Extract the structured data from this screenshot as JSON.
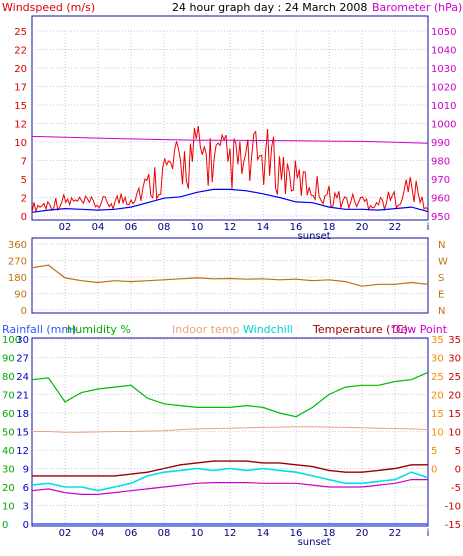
{
  "header": {
    "title": "24 hour graph day : 24 March 2008",
    "left_label": "Windspeed (m/s)",
    "right_label": "Barometer (hPa)"
  },
  "colors": {
    "frame": "#1010a0",
    "grid": "#9090c8",
    "wind_avg": "#0000ee",
    "gust": "#ee0000",
    "barometer": "#cc00cc",
    "direction": "#c07010",
    "rainfall": "#3355ff",
    "humidity": "#00bb00",
    "indoor_temp": "#f0a080",
    "windchill": "#00e0e0",
    "temperature": "#990000",
    "dew_point": "#cc00cc",
    "rain_axis": "#0000cc",
    "humidity_axis": "#00aa00",
    "temp_axis": "#cc0000",
    "indoor_axis": "#ff8800"
  },
  "x_axis": {
    "ticks": [
      "02",
      "04",
      "06",
      "08",
      "10",
      "12",
      "14",
      "16",
      "18",
      "20",
      "22",
      "i"
    ],
    "sunset_label": "sunset"
  },
  "chart_data": [
    {
      "type": "line",
      "name": "wind-barometer",
      "ylabel_left": "Windspeed (m/s)",
      "ylabel_right": "Barometer (hPa)",
      "ylim_left": [
        0,
        25
      ],
      "left_ticks": [
        "0",
        "2",
        "5",
        "7",
        "10",
        "12",
        "15",
        "17",
        "20",
        "22",
        "25"
      ],
      "ylim_right": [
        950,
        1050
      ],
      "right_ticks": [
        "950",
        "960",
        "970",
        "980",
        "990",
        "1000",
        "1010",
        "1020",
        "1030",
        "1040",
        "1050"
      ],
      "grid": true,
      "barometer_x_hours": [
        0,
        2,
        4,
        6,
        8,
        10,
        12,
        14,
        16,
        18,
        20,
        22,
        24
      ],
      "barometer_values": [
        993,
        992.6,
        992.1,
        991.7,
        991.3,
        991,
        990.9,
        990.8,
        990.7,
        990.5,
        990.3,
        989.9,
        989.3
      ],
      "wind_x_hours": [
        0,
        1,
        2,
        3,
        4,
        5,
        6,
        7,
        8,
        9,
        10,
        11,
        12,
        13,
        14,
        15,
        16,
        17,
        18,
        19,
        20,
        21,
        22,
        23,
        24
      ],
      "wind_avg_values": [
        0.5,
        0.8,
        1.0,
        0.9,
        0.8,
        0.9,
        1.2,
        1.8,
        2.4,
        2.6,
        3.2,
        3.6,
        3.6,
        3.4,
        3.0,
        2.5,
        1.9,
        1.8,
        1.2,
        0.9,
        0.9,
        0.8,
        1.0,
        1.2,
        0.6
      ],
      "gust_values": [
        1.5,
        2.0,
        2.5,
        2.2,
        2.0,
        2.4,
        3.5,
        5.0,
        7.5,
        8.5,
        10.5,
        9.5,
        9.0,
        8.5,
        10.0,
        8.0,
        6.0,
        5.0,
        3.5,
        2.5,
        2.5,
        2.2,
        3.0,
        5.0,
        1.0
      ]
    },
    {
      "type": "line",
      "name": "wind-direction",
      "ylim": [
        0,
        360
      ],
      "left_ticks": [
        "0",
        "90",
        "180",
        "270",
        "360"
      ],
      "right_ticks": [
        "N",
        "E",
        "S",
        "W",
        "N"
      ],
      "grid": true,
      "x_hours": [
        0,
        1,
        2,
        3,
        4,
        5,
        6,
        7,
        8,
        9,
        10,
        11,
        12,
        13,
        14,
        15,
        16,
        17,
        18,
        19,
        20,
        21,
        22,
        23,
        24
      ],
      "values": [
        230,
        245,
        175,
        160,
        150,
        160,
        155,
        160,
        165,
        170,
        175,
        170,
        172,
        168,
        170,
        165,
        168,
        160,
        165,
        155,
        130,
        140,
        140,
        150,
        140
      ]
    },
    {
      "type": "line",
      "name": "temperature-humidity-rain",
      "legend": [
        "Rainfall (mm)",
        "Humidity %",
        "Indoor temp",
        "Windchill",
        "Temperature (°C)",
        "Dew Point"
      ],
      "humidity_ticks": [
        "0",
        "10",
        "20",
        "30",
        "40",
        "50",
        "60",
        "70",
        "80",
        "90",
        "100"
      ],
      "rain_ticks": [
        "0",
        "3",
        "6",
        "9",
        "12",
        "15",
        "18",
        "21",
        "24",
        "27",
        "30"
      ],
      "temp_ticks": [
        "-15",
        "-10",
        "-5",
        "0",
        "5",
        "10",
        "15",
        "20",
        "25",
        "30",
        "35"
      ],
      "indoor_ticks": [
        "",
        "",
        "",
        "0",
        "5",
        "10",
        "15",
        "20",
        "25",
        "30",
        "35"
      ],
      "ylim_temp": [
        -15,
        35
      ],
      "grid": true,
      "x_hours": [
        0,
        1,
        2,
        3,
        4,
        5,
        6,
        7,
        8,
        9,
        10,
        11,
        12,
        13,
        14,
        15,
        16,
        17,
        18,
        19,
        20,
        21,
        22,
        23,
        24
      ],
      "humidity": [
        78,
        79,
        66,
        71,
        73,
        74,
        75,
        68,
        65,
        64,
        63,
        63,
        63,
        64,
        63,
        60,
        58,
        63,
        70,
        74,
        75,
        75,
        77,
        78,
        82
      ],
      "indoor_temp": [
        10,
        10,
        9.8,
        9.8,
        9.9,
        10,
        10,
        10.1,
        10.2,
        10.5,
        10.7,
        10.8,
        10.9,
        11,
        11.1,
        11.2,
        11.3,
        11.3,
        11.2,
        11.1,
        11,
        10.9,
        10.8,
        10.7,
        10.5
      ],
      "temperature": [
        -2,
        -2,
        -2,
        -2,
        -2,
        -2,
        -1.5,
        -1,
        0,
        1,
        1.5,
        2,
        2,
        2,
        1.5,
        1.5,
        1,
        0.5,
        -0.5,
        -1,
        -1,
        -0.5,
        0,
        1,
        1
      ],
      "windchill": [
        -4.5,
        -4,
        -5,
        -5,
        -6,
        -5,
        -4,
        -2,
        -1,
        -0.5,
        0,
        -0.5,
        0,
        -0.5,
        0,
        -0.5,
        -1,
        -2,
        -3,
        -4,
        -4,
        -3.5,
        -3,
        -1,
        -2.5
      ],
      "dew_point": [
        -6,
        -5.5,
        -6.5,
        -7,
        -7,
        -6.5,
        -6,
        -5.5,
        -5,
        -4.5,
        -4,
        -3.8,
        -3.8,
        -3.8,
        -4,
        -4,
        -4,
        -4.5,
        -5,
        -5,
        -5,
        -4.5,
        -4,
        -3,
        -3
      ],
      "rainfall": [
        0,
        0,
        0,
        0,
        0,
        0,
        0,
        0,
        0,
        0,
        0,
        0,
        0,
        0,
        0,
        0,
        0,
        0,
        0,
        0,
        0,
        0,
        0,
        0,
        0
      ]
    }
  ]
}
